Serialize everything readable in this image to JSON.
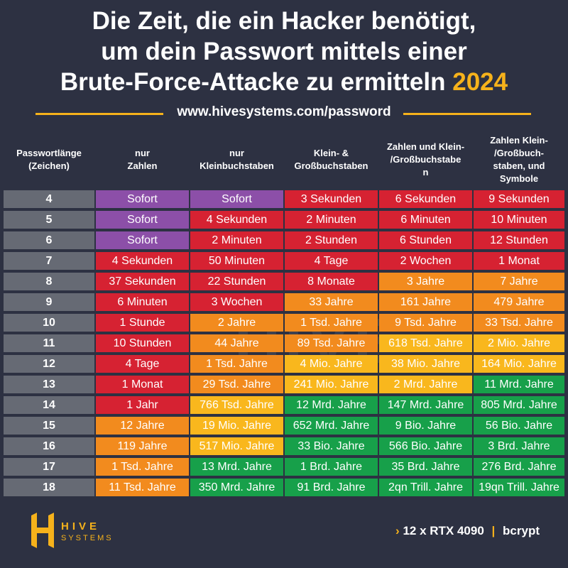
{
  "title": {
    "line1": "Die Zeit, die ein Hacker benötigt,",
    "line2": "um dein Passwort mittels einer",
    "line3": "Brute-Force-Attacke zu ermitteln",
    "year": "2024"
  },
  "url": "www.hivesystems.com/password",
  "colors": {
    "background": "#2d3142",
    "accent": "#f6b21b",
    "instant": "#8c4fa8",
    "red": "#d62232",
    "orange": "#f28b1e",
    "yellow": "#f9b71d",
    "green": "#17a04a",
    "length_cell": "#666a74"
  },
  "chart_data": {
    "type": "table",
    "columns": [
      "Passwortlänge (Zeichen)",
      "nur Zahlen",
      "nur Kleinbuchstaben",
      "Klein- & Großbuchstaben",
      "Zahlen und Klein-/Großbuchstaben",
      "Zahlen Klein-/Großbuch-staben, und Symbole"
    ],
    "rows": [
      {
        "length": "4",
        "values": [
          "Sofort",
          "Sofort",
          "3 Sekunden",
          "6 Sekunden",
          "9 Sekunden"
        ],
        "colors": [
          "purple",
          "purple",
          "red",
          "red",
          "red"
        ]
      },
      {
        "length": "5",
        "values": [
          "Sofort",
          "4 Sekunden",
          "2 Minuten",
          "6 Minuten",
          "10 Minuten"
        ],
        "colors": [
          "purple",
          "red",
          "red",
          "red",
          "red"
        ]
      },
      {
        "length": "6",
        "values": [
          "Sofort",
          "2 Minuten",
          "2 Stunden",
          "6 Stunden",
          "12 Stunden"
        ],
        "colors": [
          "purple",
          "red",
          "red",
          "red",
          "red"
        ]
      },
      {
        "length": "7",
        "values": [
          "4 Sekunden",
          "50 Minuten",
          "4 Tage",
          "2 Wochen",
          "1 Monat"
        ],
        "colors": [
          "red",
          "red",
          "red",
          "red",
          "red"
        ]
      },
      {
        "length": "8",
        "values": [
          "37 Sekunden",
          "22 Stunden",
          "8 Monate",
          "3 Jahre",
          "7 Jahre"
        ],
        "colors": [
          "red",
          "red",
          "red",
          "orange",
          "orange"
        ]
      },
      {
        "length": "9",
        "values": [
          "6 Minuten",
          "3 Wochen",
          "33 Jahre",
          "161 Jahre",
          "479 Jahre"
        ],
        "colors": [
          "red",
          "red",
          "orange",
          "orange",
          "orange"
        ]
      },
      {
        "length": "10",
        "values": [
          "1 Stunde",
          "2 Jahre",
          "1 Tsd. Jahre",
          "9 Tsd. Jahre",
          "33 Tsd. Jahre"
        ],
        "colors": [
          "red",
          "orange",
          "orange",
          "orange",
          "orange"
        ]
      },
      {
        "length": "11",
        "values": [
          "10 Stunden",
          "44 Jahre",
          "89 Tsd. Jahre",
          "618 Tsd. Jahre",
          "2 Mio. Jahre"
        ],
        "colors": [
          "red",
          "orange",
          "orange",
          "yellow",
          "yellow"
        ]
      },
      {
        "length": "12",
        "values": [
          "4 Tage",
          "1 Tsd. Jahre",
          "4 Mio. Jahre",
          "38 Mio. Jahre",
          "164 Mio. Jahre"
        ],
        "colors": [
          "red",
          "orange",
          "yellow",
          "yellow",
          "yellow"
        ]
      },
      {
        "length": "13",
        "values": [
          "1 Monat",
          "29 Tsd. Jahre",
          "241 Mio. Jahre",
          "2 Mrd. Jahre",
          "11 Mrd. Jahre"
        ],
        "colors": [
          "red",
          "orange",
          "yellow",
          "yellow",
          "green"
        ]
      },
      {
        "length": "14",
        "values": [
          "1 Jahr",
          "766 Tsd. Jahre",
          "12 Mrd. Jahre",
          "147 Mrd. Jahre",
          "805 Mrd. Jahre"
        ],
        "colors": [
          "red",
          "yellow",
          "green",
          "green",
          "green"
        ]
      },
      {
        "length": "15",
        "values": [
          "12 Jahre",
          "19 Mio. Jahre",
          "652 Mrd. Jahre",
          "9 Bio. Jahre",
          "56 Bio. Jahre"
        ],
        "colors": [
          "orange",
          "yellow",
          "green",
          "green",
          "green"
        ]
      },
      {
        "length": "16",
        "values": [
          "119 Jahre",
          "517 Mio. Jahre",
          "33 Bio. Jahre",
          "566 Bio. Jahre",
          "3 Brd. Jahre"
        ],
        "colors": [
          "orange",
          "yellow",
          "green",
          "green",
          "green"
        ]
      },
      {
        "length": "17",
        "values": [
          "1 Tsd. Jahre",
          "13 Mrd. Jahre",
          "1 Brd. Jahre",
          "35 Brd. Jahre",
          "276 Brd. Jahre"
        ],
        "colors": [
          "orange",
          "green",
          "green",
          "green",
          "green"
        ]
      },
      {
        "length": "18",
        "values": [
          "11 Tsd. Jahre",
          "350 Mrd. Jahre",
          "91 Brd. Jahre",
          "2qn Trill. Jahre",
          "19qn Trill. Jahre"
        ],
        "colors": [
          "orange",
          "green",
          "green",
          "green",
          "green"
        ]
      }
    ]
  },
  "header_lines": [
    [
      "Passwortlänge",
      "(Zeichen)"
    ],
    [
      "nur",
      "Zahlen"
    ],
    [
      "nur",
      "Kleinbuchstaben"
    ],
    [
      "Klein- &",
      "Großbuchstaben"
    ],
    [
      "Zahlen und Klein-",
      "/Großbuchstabe",
      "n"
    ],
    [
      "Zahlen Klein-",
      "/Großbuch-",
      "staben, und",
      "Symbole"
    ]
  ],
  "watermark": "HIVE",
  "logo": {
    "word": "HIVE",
    "sub": "SYSTEMS",
    "icon": "hive-logo-icon"
  },
  "footer": {
    "chevron": "›",
    "hardware": "12 x RTX 4090",
    "separator": "|",
    "algorithm": "bcrypt"
  }
}
